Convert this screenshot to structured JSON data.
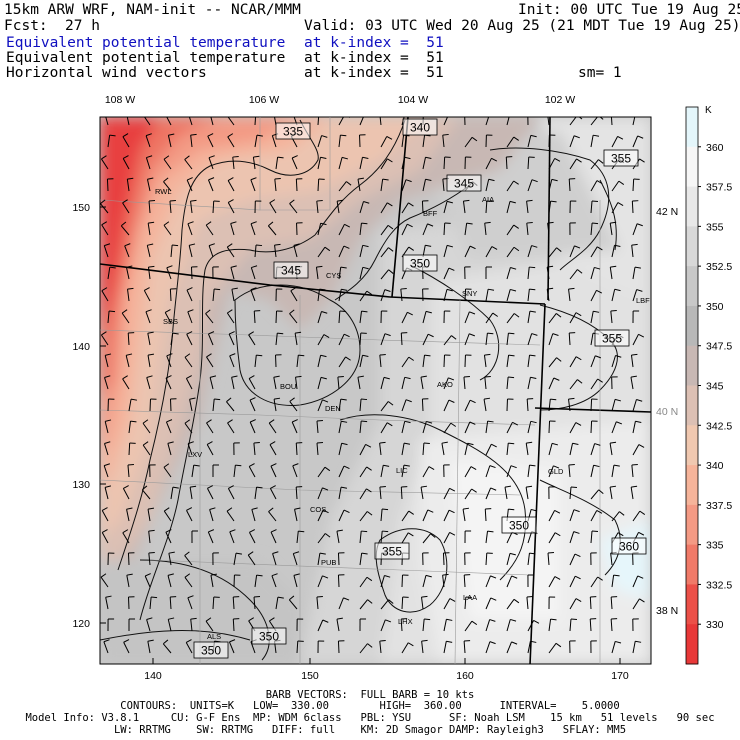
{
  "header": {
    "model_title": "15km ARW WRF, NAM-init -- NCAR/MMM",
    "init": "Init: 00 UTC Tue 19 Aug 25",
    "fcst_label": "Fcst:",
    "fcst_value": "27 h",
    "valid": "Valid: 03 UTC Wed 20 Aug 25 (21 MDT Tue 19 Aug 25)",
    "fields": [
      {
        "name": "Equivalent potential temperature",
        "level": "at k-index =  51",
        "color": "#1010c0"
      },
      {
        "name": "Equivalent potential temperature",
        "level": "at k-index =  51",
        "color": "#000000"
      },
      {
        "name": "Horizontal wind vectors",
        "level": "at k-index =  51",
        "color": "#000000"
      }
    ],
    "smoothing": "sm= 1"
  },
  "map": {
    "top_lon_labels": [
      "108 W",
      "106 W",
      "104 W",
      "102 W"
    ],
    "right_lat_labels": [
      "42 N",
      "40 N",
      "38 N"
    ],
    "left_y_ticks": [
      "150",
      "140",
      "130",
      "120"
    ],
    "bottom_x_ticks": [
      "140",
      "150",
      "160",
      "170"
    ],
    "cities": [
      "RWL",
      "BFF",
      "AIA",
      "CYS",
      "SNY",
      "LBF",
      "SBS",
      "BOU",
      "AKO",
      "DEN",
      "LXV",
      "LIC",
      "GLD",
      "COS",
      "PUB",
      "LHX",
      "LAA",
      "ALS"
    ],
    "contour_labels": [
      "335",
      "340",
      "345",
      "345",
      "350",
      "355",
      "355",
      "350",
      "355",
      "360",
      "350",
      "350"
    ]
  },
  "colorbar": {
    "unit": "K",
    "labels": [
      "360",
      "357.5",
      "355",
      "352.5",
      "350",
      "347.5",
      "345",
      "342.5",
      "340",
      "337.5",
      "335",
      "332.5",
      "330"
    ],
    "colors": [
      "#e4f6fb",
      "#f6f6f6",
      "#e8e8e8",
      "#d8d8d8",
      "#c8c8c8",
      "#b8b8b8",
      "#c8b8b4",
      "#dcc0b4",
      "#f0c8b0",
      "#f6b49a",
      "#f49a84",
      "#f07a68",
      "#ec5048",
      "#e83838"
    ]
  },
  "footer": {
    "barb": "BARB VECTORS:  FULL BARB = 10 kts",
    "contours": "CONTOURS:  UNITS=K   LOW=  330.00        HIGH=  360.00      INTERVAL=    5.0000",
    "model_info": "Model Info: V3.8.1     CU: G-F Ens  MP: WDM 6class   PBL: YSU      SF: Noah LSM    15 km   51 levels   90 sec",
    "model_info2": "LW: RRTMG    SW: RRTMG   DIFF: full    KM: 2D Smagor DAMP: Rayleigh3   SFLAY: MM5"
  }
}
